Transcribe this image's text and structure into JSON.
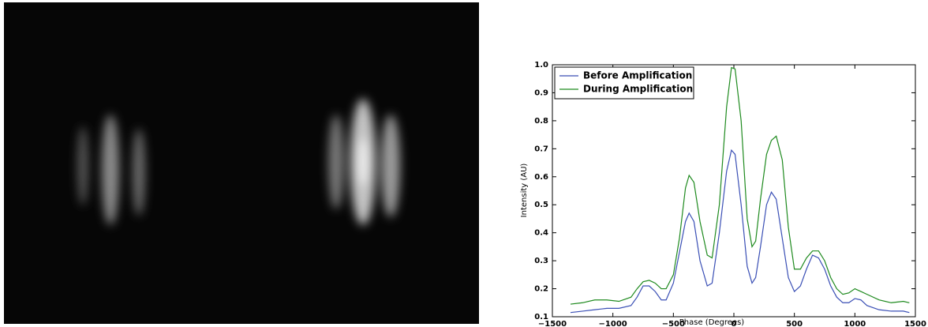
{
  "chart_data": {
    "type": "line",
    "xlabel": "Phase (Degrees)",
    "ylabel": "Intensity (AU)",
    "x": [
      -1350,
      -1250,
      -1150,
      -1050,
      -950,
      -850,
      -800,
      -750,
      -700,
      -650,
      -600,
      -560,
      -500,
      -450,
      -400,
      -370,
      -330,
      -280,
      -220,
      -180,
      -120,
      -60,
      -20,
      10,
      60,
      110,
      150,
      180,
      220,
      270,
      310,
      350,
      400,
      450,
      500,
      550,
      600,
      650,
      700,
      750,
      800,
      850,
      900,
      950,
      1000,
      1050,
      1100,
      1200,
      1300,
      1400,
      1450
    ],
    "series": [
      {
        "name": "Before Amplification",
        "color": "#3a4fb5",
        "values": [
          0.115,
          0.12,
          0.125,
          0.13,
          0.13,
          0.14,
          0.17,
          0.21,
          0.21,
          0.19,
          0.16,
          0.16,
          0.22,
          0.33,
          0.44,
          0.47,
          0.44,
          0.3,
          0.21,
          0.22,
          0.4,
          0.62,
          0.695,
          0.68,
          0.5,
          0.28,
          0.22,
          0.24,
          0.35,
          0.5,
          0.545,
          0.52,
          0.38,
          0.24,
          0.19,
          0.21,
          0.27,
          0.32,
          0.31,
          0.27,
          0.21,
          0.17,
          0.15,
          0.15,
          0.165,
          0.16,
          0.14,
          0.125,
          0.12,
          0.12,
          0.115
        ]
      },
      {
        "name": "During Amplification",
        "color": "#1e8a1e",
        "values": [
          0.145,
          0.15,
          0.16,
          0.16,
          0.155,
          0.17,
          0.2,
          0.225,
          0.23,
          0.22,
          0.2,
          0.2,
          0.25,
          0.38,
          0.56,
          0.605,
          0.58,
          0.44,
          0.32,
          0.31,
          0.5,
          0.85,
          0.99,
          0.985,
          0.8,
          0.45,
          0.35,
          0.37,
          0.52,
          0.68,
          0.73,
          0.745,
          0.66,
          0.42,
          0.27,
          0.27,
          0.31,
          0.335,
          0.335,
          0.3,
          0.24,
          0.2,
          0.18,
          0.185,
          0.2,
          0.19,
          0.18,
          0.16,
          0.15,
          0.155,
          0.15
        ]
      }
    ],
    "xlim": [
      -1500,
      1500
    ],
    "xticks": [
      {
        "value": -1500,
        "label": "−1500"
      },
      {
        "value": -1000,
        "label": "−1000"
      },
      {
        "value": -500,
        "label": "−500"
      },
      0,
      500,
      1000,
      1500
    ],
    "ylim": [
      0.1,
      1.0
    ],
    "yticks": [
      0.1,
      0.2,
      0.3,
      0.4,
      0.5,
      0.6,
      0.7,
      0.8,
      0.9,
      {
        "value": 1,
        "label": "1.0"
      }
    ],
    "legend": "upper left",
    "grid": false
  }
}
